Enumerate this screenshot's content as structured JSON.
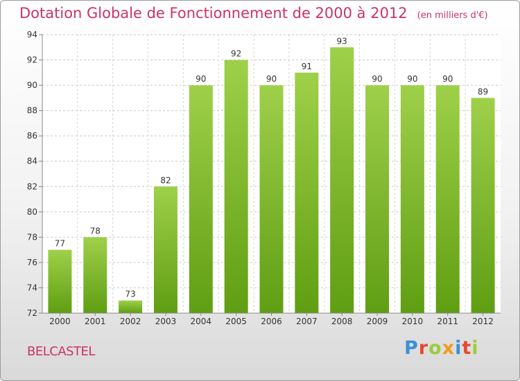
{
  "header": {
    "title": "Dotation Globale de Fonctionnement de 2000 à 2012",
    "unit": "(en milliers d'€)"
  },
  "footer": {
    "commune": "BELCASTEL",
    "brand": "Proxiti",
    "brand_colors": [
      "#3b8fd6",
      "#e7492e",
      "#9ccc3c",
      "#f39a1e",
      "#3b8fd6",
      "#e7492e",
      "#9ccc3c"
    ]
  },
  "colors": {
    "bar_top": "#9fd04a",
    "bar_bottom": "#5f9e12",
    "accent": "#cc3366"
  },
  "chart_data": {
    "type": "bar",
    "categories": [
      "2000",
      "2001",
      "2002",
      "2003",
      "2004",
      "2005",
      "2006",
      "2007",
      "2008",
      "2009",
      "2010",
      "2011",
      "2012"
    ],
    "values": [
      77,
      78,
      73,
      82,
      90,
      92,
      90,
      91,
      93,
      90,
      90,
      90,
      89
    ],
    "title": "Dotation Globale de Fonctionnement de 2000 à 2012",
    "ylim": [
      72,
      94
    ],
    "yticks": [
      72,
      74,
      76,
      78,
      80,
      82,
      84,
      86,
      88,
      90,
      92,
      94
    ],
    "grid": true,
    "legend": "none"
  }
}
